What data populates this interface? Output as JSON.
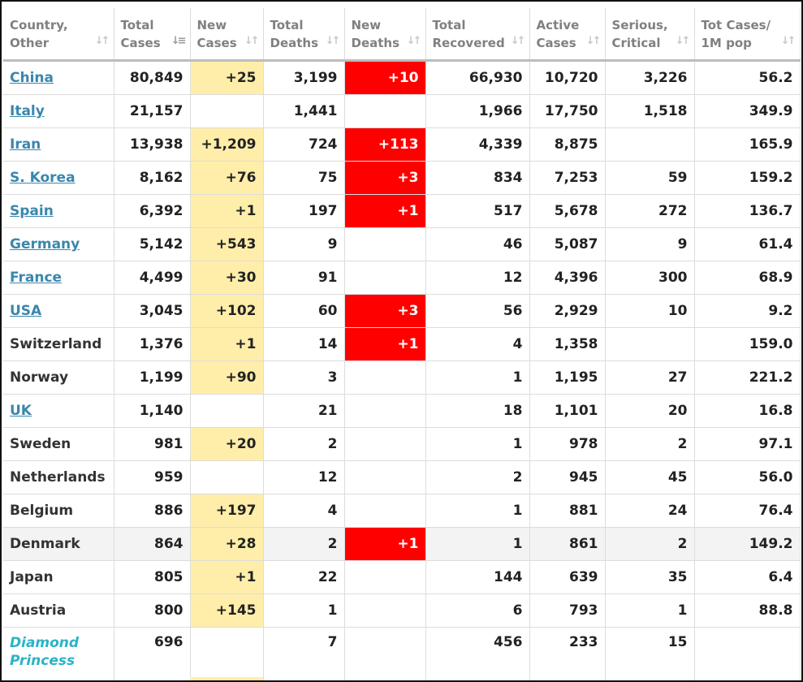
{
  "headers": [
    {
      "label": "Country,\nOther"
    },
    {
      "label": "Total\nCases"
    },
    {
      "label": "New\nCases"
    },
    {
      "label": "Total\nDeaths"
    },
    {
      "label": "New\nDeaths"
    },
    {
      "label": "Total\nRecovered"
    },
    {
      "label": "Active\nCases"
    },
    {
      "label": "Serious,\nCritical"
    },
    {
      "label": "Tot Cases/\n1M pop"
    }
  ],
  "sorted_column": "Total Cases",
  "sort_icon": "sort-arrows-icon",
  "colors": {
    "link": "#3a87ad",
    "ship": "#2ab3c5",
    "new_cases_highlight": "#ffeeaa",
    "new_deaths_highlight": "#ff0000"
  },
  "rows": [
    {
      "country": "China",
      "link": true,
      "total_cases": "80,849",
      "new_cases": "+25",
      "total_deaths": "3,199",
      "new_deaths": "+10",
      "total_recovered": "66,930",
      "active_cases": "10,720",
      "serious_critical": "3,226",
      "per_million": "56.2"
    },
    {
      "country": "Italy",
      "link": true,
      "total_cases": "21,157",
      "new_cases": "",
      "total_deaths": "1,441",
      "new_deaths": "",
      "total_recovered": "1,966",
      "active_cases": "17,750",
      "serious_critical": "1,518",
      "per_million": "349.9"
    },
    {
      "country": "Iran",
      "link": true,
      "total_cases": "13,938",
      "new_cases": "+1,209",
      "total_deaths": "724",
      "new_deaths": "+113",
      "total_recovered": "4,339",
      "active_cases": "8,875",
      "serious_critical": "",
      "per_million": "165.9"
    },
    {
      "country": "S. Korea",
      "link": true,
      "total_cases": "8,162",
      "new_cases": "+76",
      "total_deaths": "75",
      "new_deaths": "+3",
      "total_recovered": "834",
      "active_cases": "7,253",
      "serious_critical": "59",
      "per_million": "159.2"
    },
    {
      "country": "Spain",
      "link": true,
      "total_cases": "6,392",
      "new_cases": "+1",
      "total_deaths": "197",
      "new_deaths": "+1",
      "total_recovered": "517",
      "active_cases": "5,678",
      "serious_critical": "272",
      "per_million": "136.7"
    },
    {
      "country": "Germany",
      "link": true,
      "total_cases": "5,142",
      "new_cases": "+543",
      "total_deaths": "9",
      "new_deaths": "",
      "total_recovered": "46",
      "active_cases": "5,087",
      "serious_critical": "9",
      "per_million": "61.4"
    },
    {
      "country": "France",
      "link": true,
      "total_cases": "4,499",
      "new_cases": "+30",
      "total_deaths": "91",
      "new_deaths": "",
      "total_recovered": "12",
      "active_cases": "4,396",
      "serious_critical": "300",
      "per_million": "68.9"
    },
    {
      "country": "USA",
      "link": true,
      "total_cases": "3,045",
      "new_cases": "+102",
      "total_deaths": "60",
      "new_deaths": "+3",
      "total_recovered": "56",
      "active_cases": "2,929",
      "serious_critical": "10",
      "per_million": "9.2"
    },
    {
      "country": "Switzerland",
      "link": false,
      "total_cases": "1,376",
      "new_cases": "+1",
      "total_deaths": "14",
      "new_deaths": "+1",
      "total_recovered": "4",
      "active_cases": "1,358",
      "serious_critical": "",
      "per_million": "159.0"
    },
    {
      "country": "Norway",
      "link": false,
      "total_cases": "1,199",
      "new_cases": "+90",
      "total_deaths": "3",
      "new_deaths": "",
      "total_recovered": "1",
      "active_cases": "1,195",
      "serious_critical": "27",
      "per_million": "221.2"
    },
    {
      "country": "UK",
      "link": true,
      "total_cases": "1,140",
      "new_cases": "",
      "total_deaths": "21",
      "new_deaths": "",
      "total_recovered": "18",
      "active_cases": "1,101",
      "serious_critical": "20",
      "per_million": "16.8"
    },
    {
      "country": "Sweden",
      "link": false,
      "total_cases": "981",
      "new_cases": "+20",
      "total_deaths": "2",
      "new_deaths": "",
      "total_recovered": "1",
      "active_cases": "978",
      "serious_critical": "2",
      "per_million": "97.1"
    },
    {
      "country": "Netherlands",
      "link": false,
      "total_cases": "959",
      "new_cases": "",
      "total_deaths": "12",
      "new_deaths": "",
      "total_recovered": "2",
      "active_cases": "945",
      "serious_critical": "45",
      "per_million": "56.0"
    },
    {
      "country": "Belgium",
      "link": false,
      "total_cases": "886",
      "new_cases": "+197",
      "total_deaths": "4",
      "new_deaths": "",
      "total_recovered": "1",
      "active_cases": "881",
      "serious_critical": "24",
      "per_million": "76.4"
    },
    {
      "country": "Denmark",
      "link": false,
      "hovered": true,
      "total_cases": "864",
      "new_cases": "+28",
      "total_deaths": "2",
      "new_deaths": "+1",
      "total_recovered": "1",
      "active_cases": "861",
      "serious_critical": "2",
      "per_million": "149.2"
    },
    {
      "country": "Japan",
      "link": false,
      "total_cases": "805",
      "new_cases": "+1",
      "total_deaths": "22",
      "new_deaths": "",
      "total_recovered": "144",
      "active_cases": "639",
      "serious_critical": "35",
      "per_million": "6.4"
    },
    {
      "country": "Austria",
      "link": false,
      "total_cases": "800",
      "new_cases": "+145",
      "total_deaths": "1",
      "new_deaths": "",
      "total_recovered": "6",
      "active_cases": "793",
      "serious_critical": "1",
      "per_million": "88.8"
    },
    {
      "country": "Diamond Princess",
      "ship": true,
      "link": false,
      "total_cases": "696",
      "new_cases": "",
      "total_deaths": "7",
      "new_deaths": "",
      "total_recovered": "456",
      "active_cases": "233",
      "serious_critical": "15",
      "per_million": ""
    }
  ]
}
